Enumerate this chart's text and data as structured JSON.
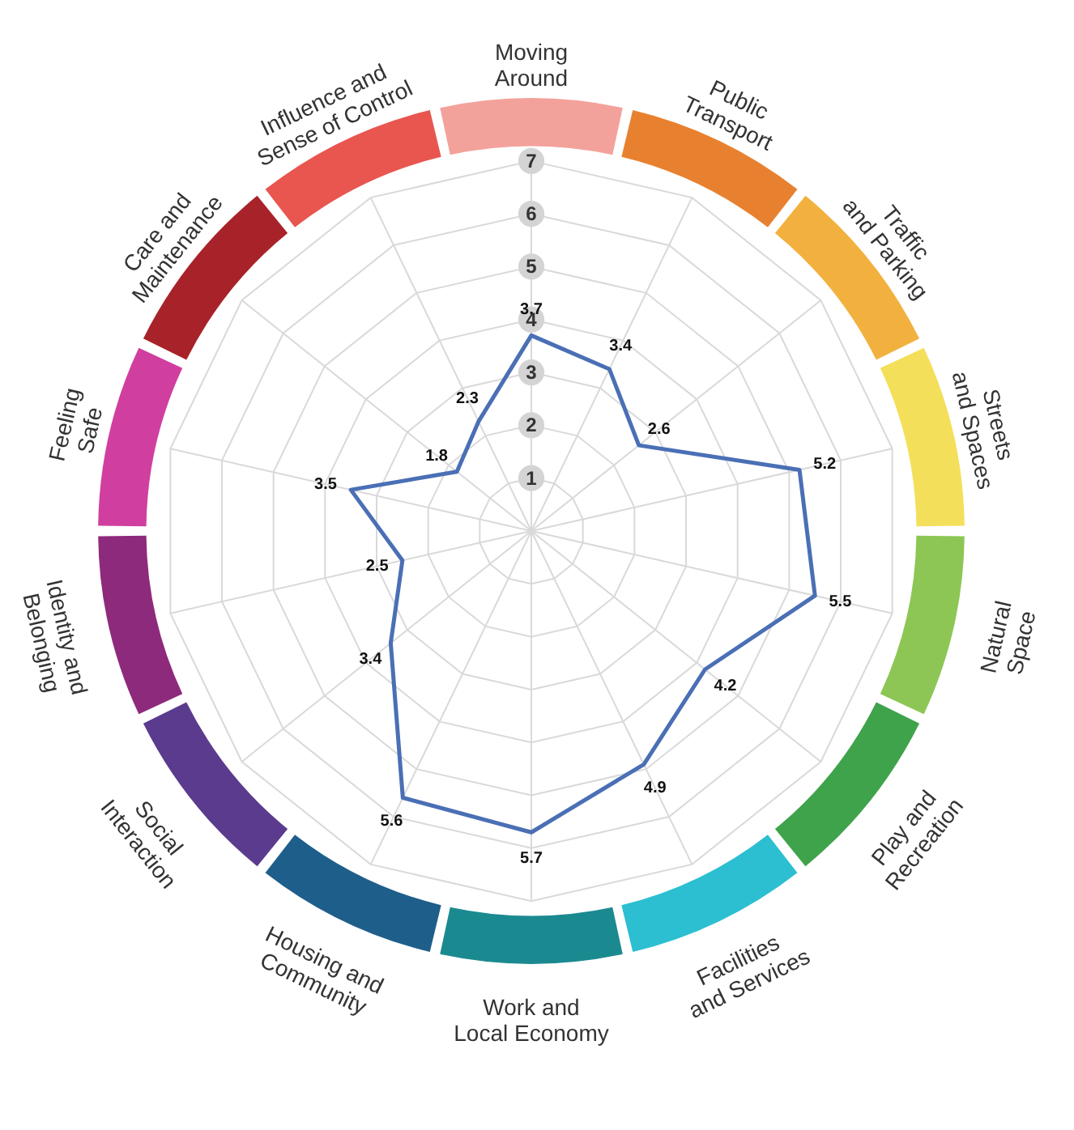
{
  "chart_data": {
    "type": "radar",
    "categories": [
      "Moving Around",
      "Public Transport",
      "Traffic and Parking",
      "Streets and Spaces",
      "Natural Space",
      "Play and Recreation",
      "Facilities and Services",
      "Work and Local Economy",
      "Housing and Community",
      "Social Interaction",
      "Identity and Belonging",
      "Feeling Safe",
      "Care and Maintenance",
      "Influence and Sense of Control"
    ],
    "colors": [
      "#f3a29b",
      "#e8812f",
      "#f2b13f",
      "#f4df5b",
      "#8dc654",
      "#3fa34b",
      "#2bbfd1",
      "#1b8a90",
      "#1e5e8b",
      "#5b3b8d",
      "#8e2a7b",
      "#d03f9f",
      "#a82329",
      "#e8564f"
    ],
    "series": [
      {
        "color": "#4a6fb5",
        "values": [
          3.7,
          3.4,
          2.6,
          5.2,
          5.5,
          4.2,
          4.9,
          5.7,
          5.6,
          3.4,
          2.5,
          3.5,
          1.8,
          2.3
        ]
      }
    ],
    "ylim": [
      0,
      7
    ],
    "yticks": [
      1,
      2,
      3,
      4,
      5,
      6,
      7
    ],
    "grid": true,
    "data_labels": true
  }
}
